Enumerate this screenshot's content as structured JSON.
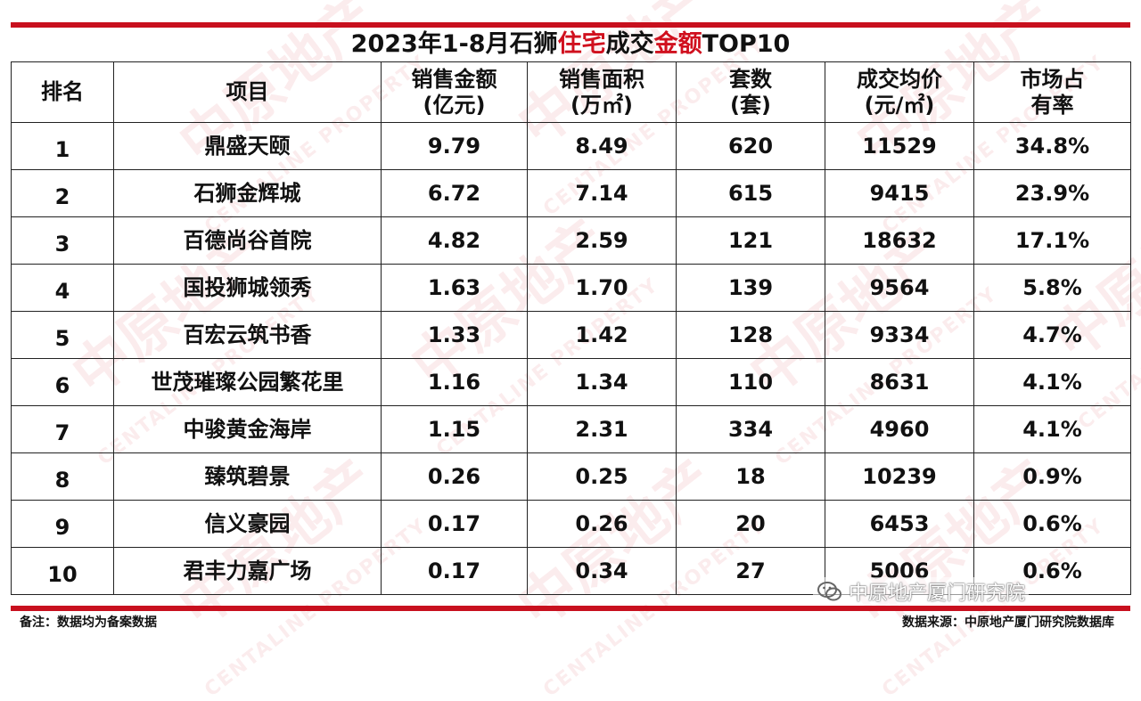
{
  "title": {
    "part1": "2023年1-8月石狮",
    "part2": "住宅",
    "part3": "成交",
    "part4": "金额",
    "part5": "TOP10"
  },
  "colors": {
    "accent": "#c8101e",
    "title_highlight": "#d0101e"
  },
  "headers": {
    "rank": "排名",
    "project": "项目",
    "amount_line1": "销售金额",
    "amount_line2": "(亿元)",
    "area_line1": "销售面积",
    "area_line2": "(万㎡)",
    "units_line1": "套数",
    "units_line2": "(套)",
    "price_line1": "成交均价",
    "price_line2": "(元/㎡)",
    "share_line1": "市场占",
    "share_line2": "有率"
  },
  "rows": [
    {
      "rank": "1",
      "project": "鼎盛天颐",
      "amount": "9.79",
      "area": "8.49",
      "units": "620",
      "price": "11529",
      "share": "34.8%"
    },
    {
      "rank": "2",
      "project": "石狮金辉城",
      "amount": "6.72",
      "area": "7.14",
      "units": "615",
      "price": "9415",
      "share": "23.9%"
    },
    {
      "rank": "3",
      "project": "百德尚谷首院",
      "amount": "4.82",
      "area": "2.59",
      "units": "121",
      "price": "18632",
      "share": "17.1%"
    },
    {
      "rank": "4",
      "project": "国投狮城领秀",
      "amount": "1.63",
      "area": "1.70",
      "units": "139",
      "price": "9564",
      "share": "5.8%"
    },
    {
      "rank": "5",
      "project": "百宏云筑书香",
      "amount": "1.33",
      "area": "1.42",
      "units": "128",
      "price": "9334",
      "share": "4.7%"
    },
    {
      "rank": "6",
      "project": "世茂璀璨公园繁花里",
      "amount": "1.16",
      "area": "1.34",
      "units": "110",
      "price": "8631",
      "share": "4.1%"
    },
    {
      "rank": "7",
      "project": "中骏黄金海岸",
      "amount": "1.15",
      "area": "2.31",
      "units": "334",
      "price": "4960",
      "share": "4.1%"
    },
    {
      "rank": "8",
      "project": "臻筑碧景",
      "amount": "0.26",
      "area": "0.25",
      "units": "18",
      "price": "10239",
      "share": "0.9%"
    },
    {
      "rank": "9",
      "project": "信义豪园",
      "amount": "0.17",
      "area": "0.26",
      "units": "20",
      "price": "6453",
      "share": "0.6%"
    },
    {
      "rank": "10",
      "project": "君丰力嘉广场",
      "amount": "0.17",
      "area": "0.34",
      "units": "27",
      "price": "5006",
      "share": "0.6%"
    }
  ],
  "footer": {
    "note": "备注：数据均为备案数据",
    "source": "数据来源：中原地产厦门研究院数据库"
  },
  "wechat": {
    "icon": "wechat-icon",
    "label": "中原地产厦门研究院"
  },
  "watermark": {
    "cn": "中原地产",
    "en": "CENTALINE PROPERTY"
  }
}
